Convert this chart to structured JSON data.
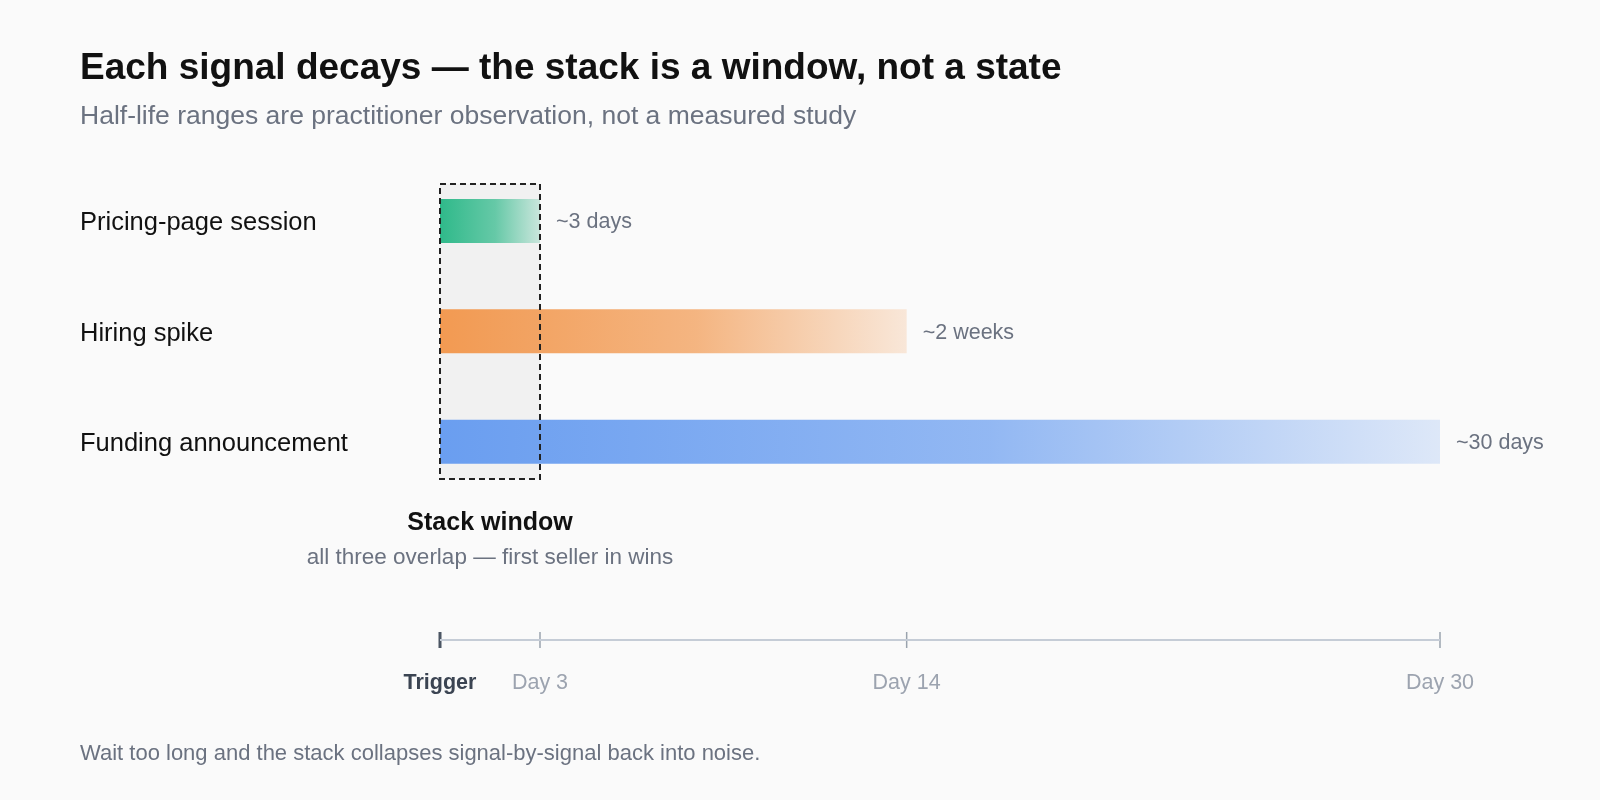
{
  "chart_data": {
    "type": "bar",
    "orientation": "horizontal",
    "title": "Each signal decays — the stack is a window, not a state",
    "subtitle": "Half-life ranges are practitioner observation, not a measured study",
    "categories": [
      "Pricing-page session",
      "Hiring spike",
      "Funding announcement"
    ],
    "values": [
      3,
      14,
      30
    ],
    "colors": [
      "#2fb98a",
      "#f29a52",
      "#6a9ef0"
    ],
    "xlim": [
      0,
      30
    ],
    "tick_labels": "y",
    "bands": [
      {
        "axis": "x",
        "from": 0,
        "to": 3,
        "label": "Stack window",
        "color": "#f1f1f1"
      }
    ],
    "ref_lines": [
      {
        "axis": "x",
        "value": 0,
        "label": "Trigger"
      },
      {
        "axis": "x",
        "value": 3,
        "label": "Day 3"
      },
      {
        "axis": "x",
        "value": 14,
        "label": "Day 14"
      },
      {
        "axis": "x",
        "value": 30,
        "label": "Day 30"
      }
    ],
    "annotations": [
      {
        "text": "~3 days",
        "x": 3,
        "y": "Pricing-page session"
      },
      {
        "text": "~2 weeks",
        "x": 14,
        "y": "Hiring spike"
      },
      {
        "text": "~30 days",
        "x": 30,
        "y": "Funding announcement"
      },
      "all three overlap — first seller in wins",
      "Wait too long and the stack collapses signal-by-signal back into noise."
    ]
  }
}
